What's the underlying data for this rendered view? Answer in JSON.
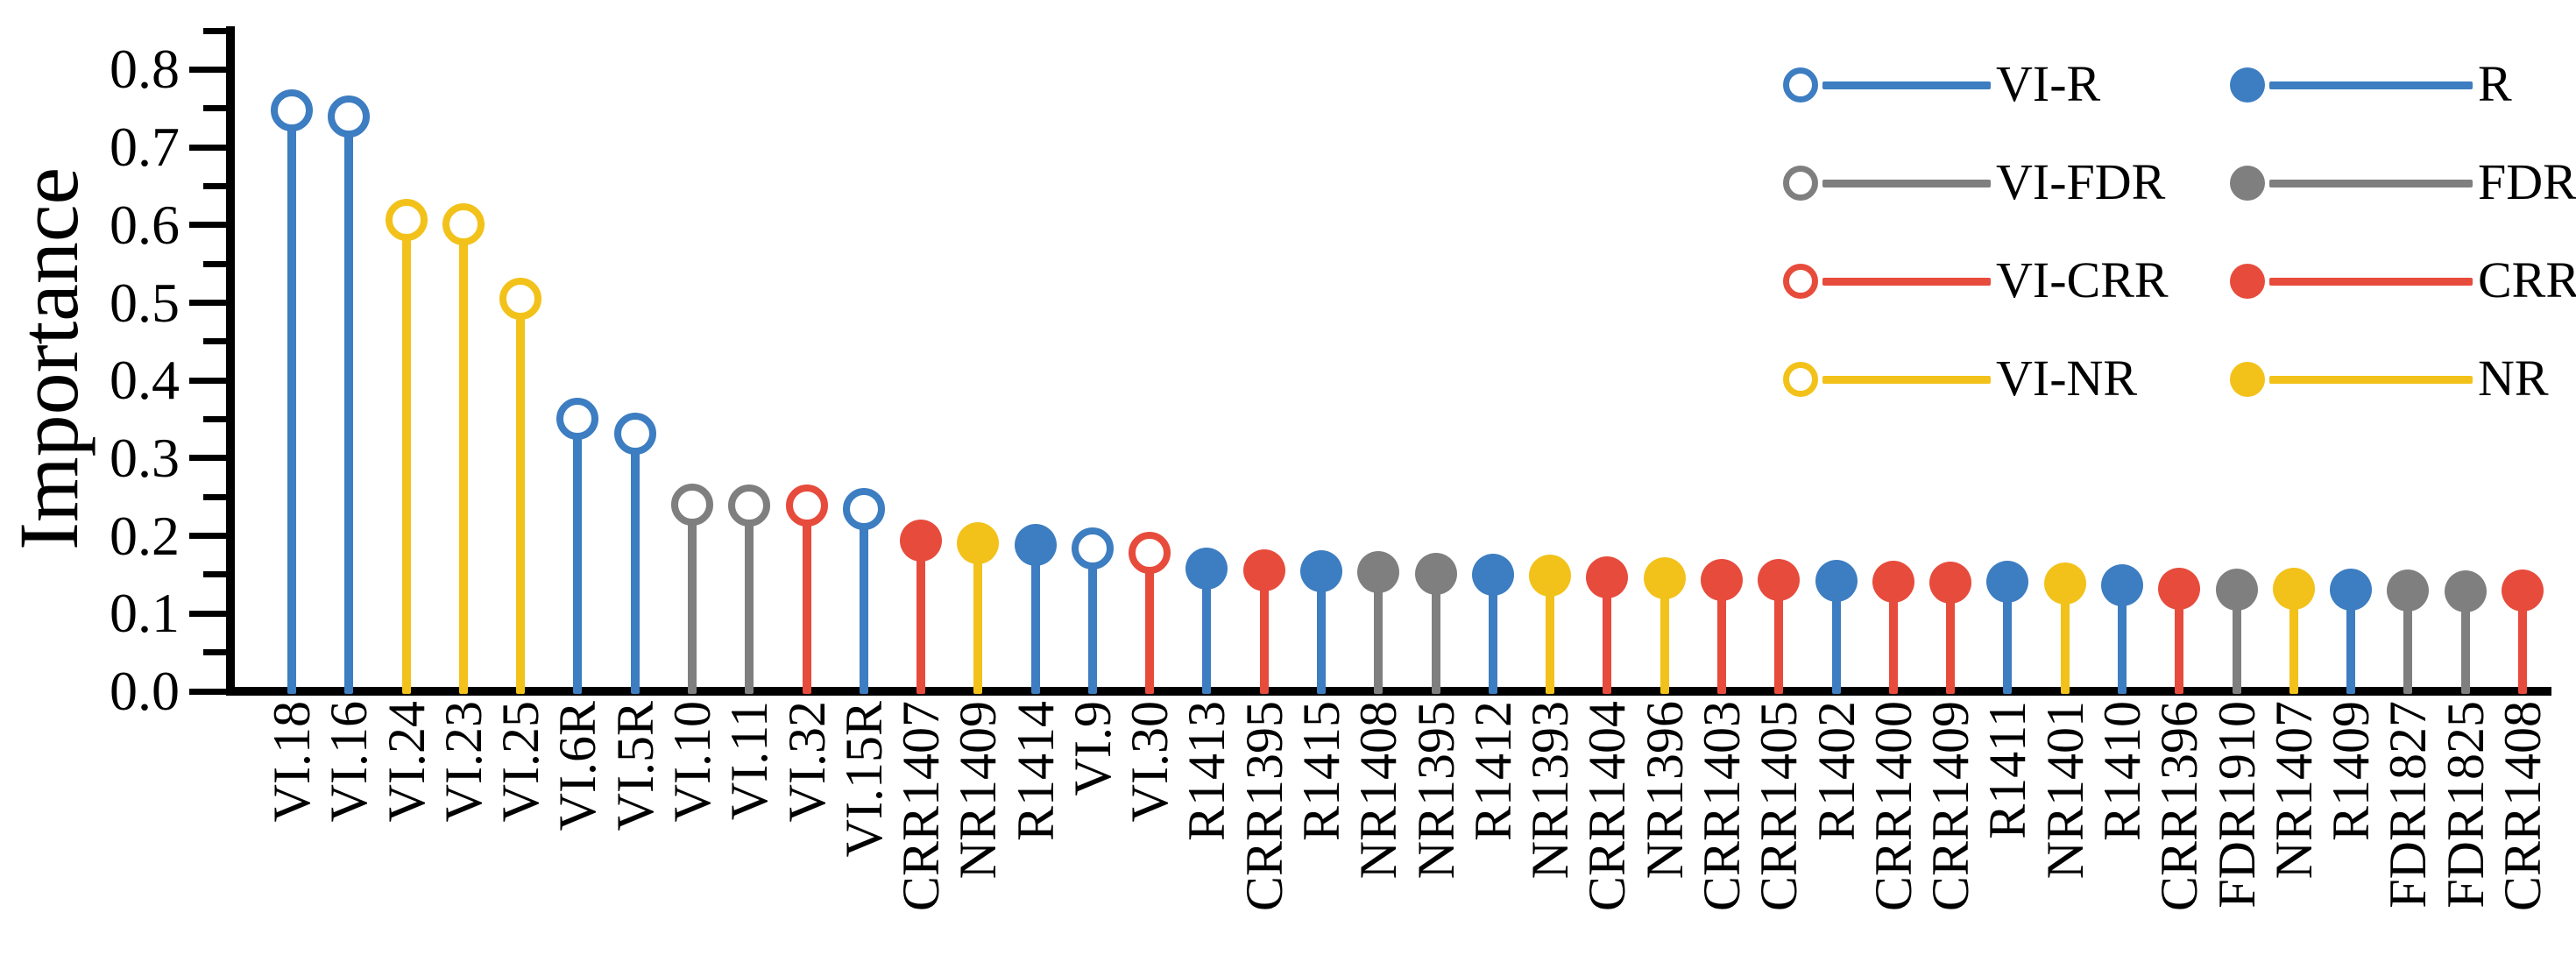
{
  "chart_data": {
    "type": "lollipop",
    "title": "",
    "ylabel": "Importance",
    "xlabel": "",
    "ylim": [
      0,
      0.85
    ],
    "ytick_major_step": 0.1,
    "ytick_minor_step": 0.05,
    "ytick_labels": [
      "0.0",
      "0.1",
      "0.2",
      "0.3",
      "0.4",
      "0.5",
      "0.6",
      "0.7",
      "0.8"
    ],
    "grid": "off",
    "legend_position": "top-right",
    "categories": [
      "VI.18",
      "VI.16",
      "VI.24",
      "VI.23",
      "VI.25",
      "VI.6R",
      "VI.5R",
      "VI.10",
      "VI.11",
      "VI.32",
      "VI.15R",
      "CRR1407",
      "NR1409",
      "R1414",
      "VI.9",
      "VI.30",
      "R1413",
      "CRR1395",
      "R1415",
      "NR1408",
      "NR1395",
      "R1412",
      "NR1393",
      "CRR1404",
      "NR1396",
      "CRR1403",
      "CRR1405",
      "R1402",
      "CRR1400",
      "CRR1409",
      "R1411",
      "NR1401",
      "R1410",
      "CRR1396",
      "FDR1910",
      "NR1407",
      "R1409",
      "FDR1827",
      "FDR1825",
      "CRR1408"
    ],
    "points": [
      {
        "label": "VI.18",
        "value": 0.747,
        "color": "blue",
        "filled": false
      },
      {
        "label": "VI.16",
        "value": 0.74,
        "color": "blue",
        "filled": false
      },
      {
        "label": "VI.24",
        "value": 0.607,
        "color": "yellow",
        "filled": false
      },
      {
        "label": "VI.23",
        "value": 0.601,
        "color": "yellow",
        "filled": false
      },
      {
        "label": "VI.25",
        "value": 0.505,
        "color": "yellow",
        "filled": false
      },
      {
        "label": "VI.6R",
        "value": 0.351,
        "color": "blue",
        "filled": false
      },
      {
        "label": "VI.5R",
        "value": 0.331,
        "color": "blue",
        "filled": false
      },
      {
        "label": "VI.10",
        "value": 0.24,
        "color": "gray",
        "filled": false
      },
      {
        "label": "VI.11",
        "value": 0.239,
        "color": "gray",
        "filled": false
      },
      {
        "label": "VI.32",
        "value": 0.239,
        "color": "red",
        "filled": false
      },
      {
        "label": "VI.15R",
        "value": 0.234,
        "color": "blue",
        "filled": false
      },
      {
        "label": "CRR1407",
        "value": 0.194,
        "color": "red",
        "filled": true
      },
      {
        "label": "NR1409",
        "value": 0.191,
        "color": "yellow",
        "filled": true
      },
      {
        "label": "R1414",
        "value": 0.188,
        "color": "blue",
        "filled": true
      },
      {
        "label": "VI.9",
        "value": 0.184,
        "color": "blue",
        "filled": false
      },
      {
        "label": "VI.30",
        "value": 0.178,
        "color": "red",
        "filled": false
      },
      {
        "label": "R1413",
        "value": 0.158,
        "color": "blue",
        "filled": true
      },
      {
        "label": "CRR1395",
        "value": 0.156,
        "color": "red",
        "filled": true
      },
      {
        "label": "R1415",
        "value": 0.155,
        "color": "blue",
        "filled": true
      },
      {
        "label": "NR1408",
        "value": 0.153,
        "color": "gray",
        "filled": true
      },
      {
        "label": "NR1395",
        "value": 0.151,
        "color": "gray",
        "filled": true
      },
      {
        "label": "R1412",
        "value": 0.15,
        "color": "blue",
        "filled": true
      },
      {
        "label": "NR1393",
        "value": 0.149,
        "color": "yellow",
        "filled": true
      },
      {
        "label": "CRR1404",
        "value": 0.147,
        "color": "red",
        "filled": true
      },
      {
        "label": "NR1396",
        "value": 0.145,
        "color": "yellow",
        "filled": true
      },
      {
        "label": "CRR1403",
        "value": 0.143,
        "color": "red",
        "filled": true
      },
      {
        "label": "CRR1405",
        "value": 0.143,
        "color": "red",
        "filled": true
      },
      {
        "label": "R1402",
        "value": 0.142,
        "color": "blue",
        "filled": true
      },
      {
        "label": "CRR1400",
        "value": 0.141,
        "color": "red",
        "filled": true
      },
      {
        "label": "CRR1409",
        "value": 0.14,
        "color": "red",
        "filled": true
      },
      {
        "label": "R1411",
        "value": 0.141,
        "color": "blue",
        "filled": true
      },
      {
        "label": "NR1401",
        "value": 0.139,
        "color": "yellow",
        "filled": true
      },
      {
        "label": "R1410",
        "value": 0.136,
        "color": "blue",
        "filled": true
      },
      {
        "label": "CRR1396",
        "value": 0.132,
        "color": "red",
        "filled": true
      },
      {
        "label": "FDR1910",
        "value": 0.131,
        "color": "gray",
        "filled": true
      },
      {
        "label": "NR1407",
        "value": 0.132,
        "color": "yellow",
        "filled": true
      },
      {
        "label": "R1409",
        "value": 0.131,
        "color": "blue",
        "filled": true
      },
      {
        "label": "FDR1827",
        "value": 0.13,
        "color": "gray",
        "filled": true
      },
      {
        "label": "FDR1825",
        "value": 0.129,
        "color": "gray",
        "filled": true
      },
      {
        "label": "CRR1408",
        "value": 0.13,
        "color": "red",
        "filled": true
      }
    ]
  },
  "legend": {
    "entries": [
      {
        "label": "VI-R",
        "color": "blue",
        "filled": false,
        "col": 0,
        "row": 0
      },
      {
        "label": "R",
        "color": "blue",
        "filled": true,
        "col": 1,
        "row": 0
      },
      {
        "label": "VI-FDR",
        "color": "gray",
        "filled": false,
        "col": 0,
        "row": 1
      },
      {
        "label": "FDR",
        "color": "gray",
        "filled": true,
        "col": 1,
        "row": 1
      },
      {
        "label": "VI-CRR",
        "color": "red",
        "filled": false,
        "col": 0,
        "row": 2
      },
      {
        "label": "CRR",
        "color": "red",
        "filled": true,
        "col": 1,
        "row": 2
      },
      {
        "label": "VI-NR",
        "color": "yellow",
        "filled": false,
        "col": 0,
        "row": 3
      },
      {
        "label": "NR",
        "color": "yellow",
        "filled": true,
        "col": 1,
        "row": 3
      }
    ]
  },
  "colors": {
    "blue": "#3D7DC1",
    "gray": "#7F7F7F",
    "red": "#E74B3C",
    "yellow": "#F2C21A",
    "axis": "#000000",
    "background": "#FFFFFF"
  }
}
